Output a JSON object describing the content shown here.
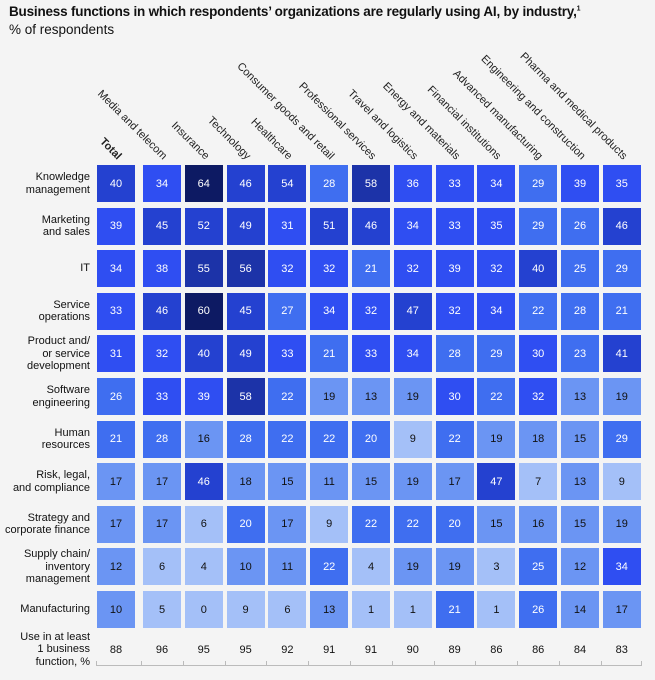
{
  "chart_data": {
    "type": "heatmap",
    "title": "Business functions in which respondents’ organizations are regularly using AI, by industry,",
    "title_footnote": "1",
    "subtitle": "% of respondents",
    "columns": [
      "Total",
      "Media and telecom",
      "Insurance",
      "Technology",
      "Healthcare",
      "Consumer goods and retail",
      "Professional services",
      "Travel and logistics",
      "Energy and materials",
      "Financial institutions",
      "Advanced manufacturing",
      "Engineering and construction",
      "Pharma and medical products"
    ],
    "rows": [
      "Knowledge\nmanagement",
      "Marketing\nand sales",
      "IT",
      "Service\noperations",
      "Product and/\nor service\ndevelopment",
      "Software\nengineering",
      "Human\nresources",
      "Risk, legal,\nand compliance",
      "Strategy and\ncorporate finance",
      "Supply chain/\ninventory\nmanagement",
      "Manufacturing"
    ],
    "values": [
      [
        40,
        34,
        64,
        46,
        54,
        28,
        58,
        36,
        33,
        34,
        29,
        39,
        35
      ],
      [
        39,
        45,
        52,
        49,
        31,
        51,
        46,
        34,
        33,
        35,
        29,
        26,
        46
      ],
      [
        34,
        38,
        55,
        56,
        32,
        32,
        21,
        32,
        39,
        32,
        40,
        25,
        29
      ],
      [
        33,
        46,
        60,
        45,
        27,
        34,
        32,
        47,
        32,
        34,
        22,
        28,
        21
      ],
      [
        31,
        32,
        40,
        49,
        33,
        21,
        33,
        34,
        28,
        29,
        30,
        23,
        41
      ],
      [
        26,
        33,
        39,
        58,
        22,
        19,
        13,
        19,
        30,
        22,
        32,
        13,
        19
      ],
      [
        21,
        28,
        16,
        28,
        22,
        22,
        20,
        9,
        22,
        19,
        18,
        15,
        29
      ],
      [
        17,
        17,
        46,
        18,
        15,
        11,
        15,
        19,
        17,
        47,
        7,
        13,
        9
      ],
      [
        17,
        17,
        6,
        20,
        17,
        9,
        22,
        22,
        20,
        15,
        16,
        15,
        19
      ],
      [
        12,
        6,
        4,
        10,
        11,
        22,
        4,
        19,
        19,
        3,
        25,
        12,
        34
      ],
      [
        10,
        5,
        0,
        9,
        6,
        13,
        1,
        1,
        21,
        1,
        26,
        14,
        17
      ]
    ],
    "footer_row": {
      "label": "Use in at least\n1 business\nfunction, %",
      "values": [
        88,
        96,
        95,
        95,
        92,
        91,
        91,
        90,
        89,
        86,
        86,
        84,
        83
      ]
    },
    "colors": [
      "#0d1a63",
      "#1c33a8",
      "#2441d0",
      "#2f4ef2",
      "#3f6ef0",
      "#6b95f3",
      "#a4c0f8"
    ]
  }
}
